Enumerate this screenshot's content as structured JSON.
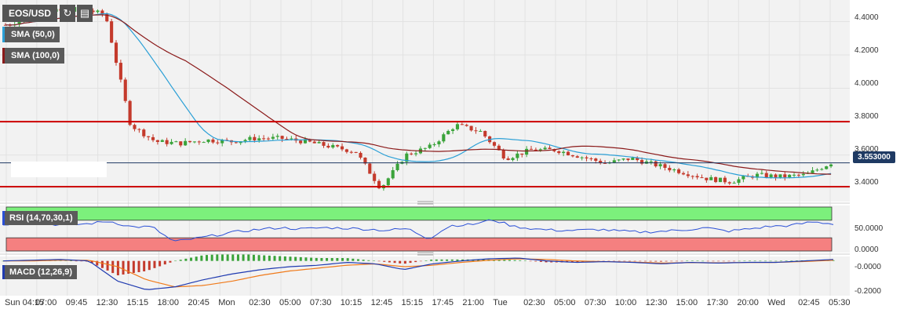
{
  "toolbar": {
    "symbol": "EOS/USD",
    "refresh_icon": "refresh-icon",
    "calendar_icon": "calendar-icon"
  },
  "legend": {
    "sma50": "SMA (50,0)",
    "sma100": "SMA (100,0)",
    "rsi": "RSI (14,70,30,1)",
    "macd": "MACD (12,26,9)"
  },
  "colors": {
    "candle_up": "#3aa33a",
    "candle_down": "#c43a2c",
    "sma50": "#2a9fd6",
    "sma100": "#8b1a1a",
    "support_resistance": "#cc0000",
    "rsi_line": "#2a4fd6",
    "rsi_overbought": "#7cf07c",
    "rsi_oversold": "#f58080",
    "macd_line": "#1f3ab0",
    "signal_line": "#f07a1a",
    "last_price_bg": "#1f3a63"
  },
  "chart_data": {
    "type": "candlestick",
    "price_axis": {
      "ticks": [
        "4.4000",
        "4.2000",
        "4.0000",
        "3.8000",
        "3.6000",
        "3.4000"
      ],
      "ylim": [
        3.33,
        4.52
      ]
    },
    "last_price": "3.553000",
    "last_price_value": 3.553,
    "horizontal_lines": [
      3.8,
      3.41
    ],
    "time_axis": [
      "Sun 04:15",
      "07:00",
      "09:45",
      "12:30",
      "15:15",
      "18:00",
      "20:45",
      "Mon",
      "02:30",
      "05:00",
      "07:30",
      "10:15",
      "12:45",
      "15:15",
      "17:45",
      "21:00",
      "Tue",
      "02:30",
      "05:00",
      "07:30",
      "10:00",
      "12:30",
      "15:00",
      "17:30",
      "20:00",
      "Wed",
      "02:45",
      "05:30"
    ],
    "close_series": [
      4.38,
      4.42,
      4.46,
      4.48,
      4.44,
      3.78,
      3.68,
      3.67,
      3.69,
      3.68,
      3.7,
      3.7,
      3.68,
      3.65,
      3.62,
      3.4,
      3.6,
      3.65,
      3.78,
      3.74,
      3.58,
      3.63,
      3.63,
      3.59,
      3.55,
      3.58,
      3.54,
      3.5,
      3.46,
      3.44,
      3.48,
      3.47,
      3.48,
      3.553
    ],
    "rsi": {
      "ylim": [
        0,
        100
      ],
      "ticks": [
        "50.0000",
        "0.0000"
      ],
      "levels": [
        70,
        30
      ],
      "values": [
        60,
        66,
        62,
        59,
        62,
        68,
        55,
        55,
        21,
        28,
        36,
        44,
        49,
        53,
        50,
        53,
        52,
        50,
        47,
        51,
        28,
        58,
        60,
        71,
        56,
        50,
        47,
        47,
        49,
        45,
        43,
        45,
        48,
        53,
        45,
        50,
        56,
        58,
        66,
        62
      ]
    },
    "macd": {
      "ylim": [
        -0.23,
        0.02
      ],
      "ticks": [
        "-0.0000",
        "-0.2000"
      ],
      "macd_line": [
        0.0,
        0.005,
        0.01,
        0.0,
        -0.14,
        -0.2,
        -0.18,
        -0.13,
        -0.09,
        -0.06,
        -0.04,
        -0.03,
        -0.01,
        -0.02,
        -0.06,
        -0.02,
        0.0,
        0.015,
        0.02,
        0.0,
        -0.01,
        -0.005,
        -0.01,
        -0.02,
        -0.01,
        -0.015,
        -0.01,
        -0.01,
        0.0,
        0.01
      ],
      "signal_line": [
        0.0,
        0.0,
        0.005,
        0.005,
        -0.04,
        -0.13,
        -0.18,
        -0.17,
        -0.14,
        -0.1,
        -0.07,
        -0.05,
        -0.03,
        -0.02,
        -0.04,
        -0.03,
        -0.01,
        0.005,
        0.015,
        0.01,
        0.0,
        -0.005,
        -0.008,
        -0.015,
        -0.012,
        -0.013,
        -0.011,
        -0.01,
        -0.004,
        0.005
      ]
    }
  }
}
